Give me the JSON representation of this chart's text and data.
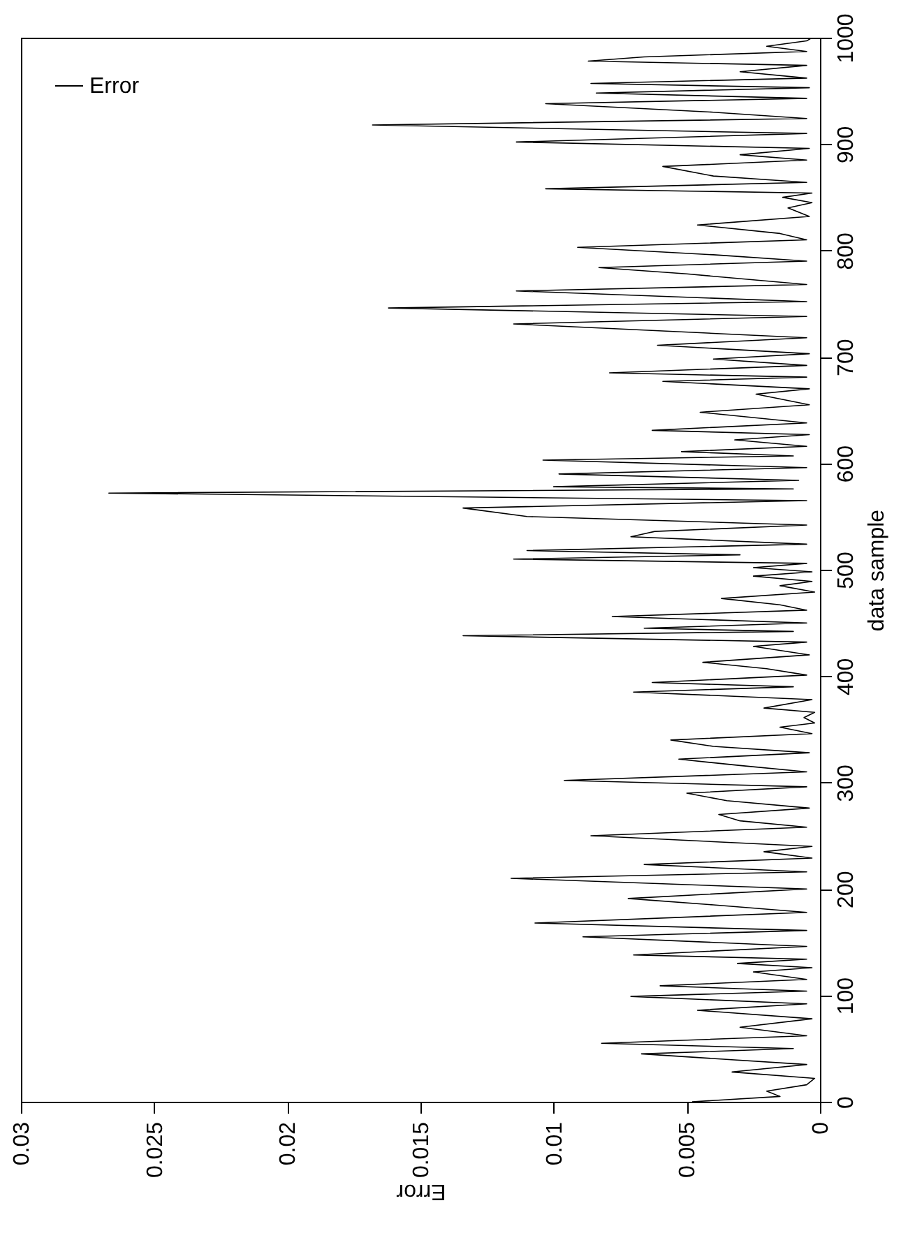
{
  "chart_data": {
    "type": "line",
    "xlabel": "Error",
    "ylabel": "data sample",
    "legend": "top left",
    "grid": false,
    "xlim": [
      0.03,
      0
    ],
    "xticks": [
      0,
      0.005,
      0.01,
      0.015,
      0.02,
      0.025,
      0.03
    ],
    "ylim": [
      0,
      1000
    ],
    "yticks": [
      0,
      100,
      200,
      300,
      400,
      500,
      600,
      700,
      800,
      900,
      1000
    ],
    "series": [
      {
        "name": "Error",
        "color": "#000000",
        "x": [
          0.0048,
          0.0015,
          0.002,
          0.0005,
          0.0002,
          0.0033,
          0.0005,
          0.0067,
          0.001,
          0.0082,
          0.0005,
          0.003,
          0.0003,
          0.0046,
          0.0005,
          0.0071,
          0.0005,
          0.006,
          0.0005,
          0.0025,
          0.0003,
          0.0031,
          0.0005,
          0.007,
          0.0005,
          0.0089,
          0.0005,
          0.0107,
          0.0005,
          0.004,
          0.0072,
          0.0005,
          0.0116,
          0.0005,
          0.0066,
          0.0003,
          0.0021,
          0.0003,
          0.0086,
          0.0005,
          0.003,
          0.0038,
          0.0004,
          0.0035,
          0.005,
          0.0005,
          0.0096,
          0.0005,
          0.003,
          0.0053,
          0.0004,
          0.004,
          0.0056,
          0.0003,
          0.0015,
          0.0002,
          0.0006,
          0.0002,
          0.0021,
          0.0003,
          0.007,
          0.001,
          0.0063,
          0.0005,
          0.002,
          0.0044,
          0.0004,
          0.0025,
          0.0005,
          0.0134,
          0.001,
          0.0066,
          0.0005,
          0.0078,
          0.0005,
          0.0015,
          0.0037,
          0.0002,
          0.0015,
          0.0003,
          0.0025,
          0.0003,
          0.0025,
          0.0005,
          0.0115,
          0.003,
          0.011,
          0.0005,
          0.0071,
          0.0062,
          0.0005,
          0.011,
          0.0134,
          0.0005,
          0.0267,
          0.001,
          0.01,
          0.0008,
          0.0098,
          0.0005,
          0.0104,
          0.001,
          0.0052,
          0.0005,
          0.0032,
          0.0004,
          0.0063,
          0.0005,
          0.0045,
          0.0004,
          0.0024,
          0.0004,
          0.0059,
          0.0005,
          0.0079,
          0.0005,
          0.004,
          0.0004,
          0.0061,
          0.0005,
          0.0115,
          0.0005,
          0.0162,
          0.0005,
          0.0114,
          0.0005,
          0.005,
          0.0083,
          0.0005,
          0.004,
          0.0091,
          0.0005,
          0.0015,
          0.0046,
          0.0004,
          0.0012,
          0.0003,
          0.0014,
          0.0003,
          0.0103,
          0.0005,
          0.004,
          0.0059,
          0.0005,
          0.003,
          0.0004,
          0.0114,
          0.0005,
          0.0168,
          0.0005,
          0.004,
          0.0103,
          0.0005,
          0.0084,
          0.0004,
          0.0086,
          0.0005,
          0.003,
          0.0005,
          0.0087,
          0.0066,
          0.0005,
          0.002,
          0.0005,
          0.0003
        ],
        "values": [
          0,
          5,
          10,
          16,
          22,
          28,
          35,
          45,
          50,
          55,
          62,
          70,
          78,
          86,
          92,
          99,
          104,
          109,
          115,
          122,
          126,
          130,
          134,
          138,
          146,
          155,
          161,
          168,
          178,
          185,
          191,
          200,
          210,
          216,
          223,
          229,
          235,
          240,
          250,
          258,
          264,
          270,
          276,
          283,
          290,
          296,
          302,
          310,
          316,
          322,
          328,
          334,
          340,
          346,
          352,
          356,
          361,
          366,
          370,
          378,
          385,
          390,
          394,
          401,
          407,
          413,
          420,
          428,
          432,
          438,
          442,
          445,
          450,
          456,
          462,
          467,
          473,
          479,
          485,
          489,
          494,
          498,
          502,
          506,
          510,
          514,
          518,
          524,
          531,
          536,
          542,
          550,
          558,
          565,
          572,
          576,
          578,
          584,
          590,
          596,
          603,
          607,
          611,
          616,
          622,
          627,
          631,
          638,
          648,
          655,
          665,
          670,
          677,
          681,
          685,
          692,
          698,
          703,
          711,
          718,
          731,
          738,
          746,
          752,
          762,
          768,
          778,
          784,
          790,
          796,
          803,
          810,
          816,
          824,
          832,
          840,
          845,
          850,
          854,
          858,
          864,
          870,
          879,
          885,
          890,
          896,
          902,
          910,
          918,
          924,
          930,
          938,
          943,
          948,
          953,
          957,
          962,
          968,
          974,
          978,
          982,
          987,
          992,
          997,
          1000
        ]
      }
    ]
  }
}
